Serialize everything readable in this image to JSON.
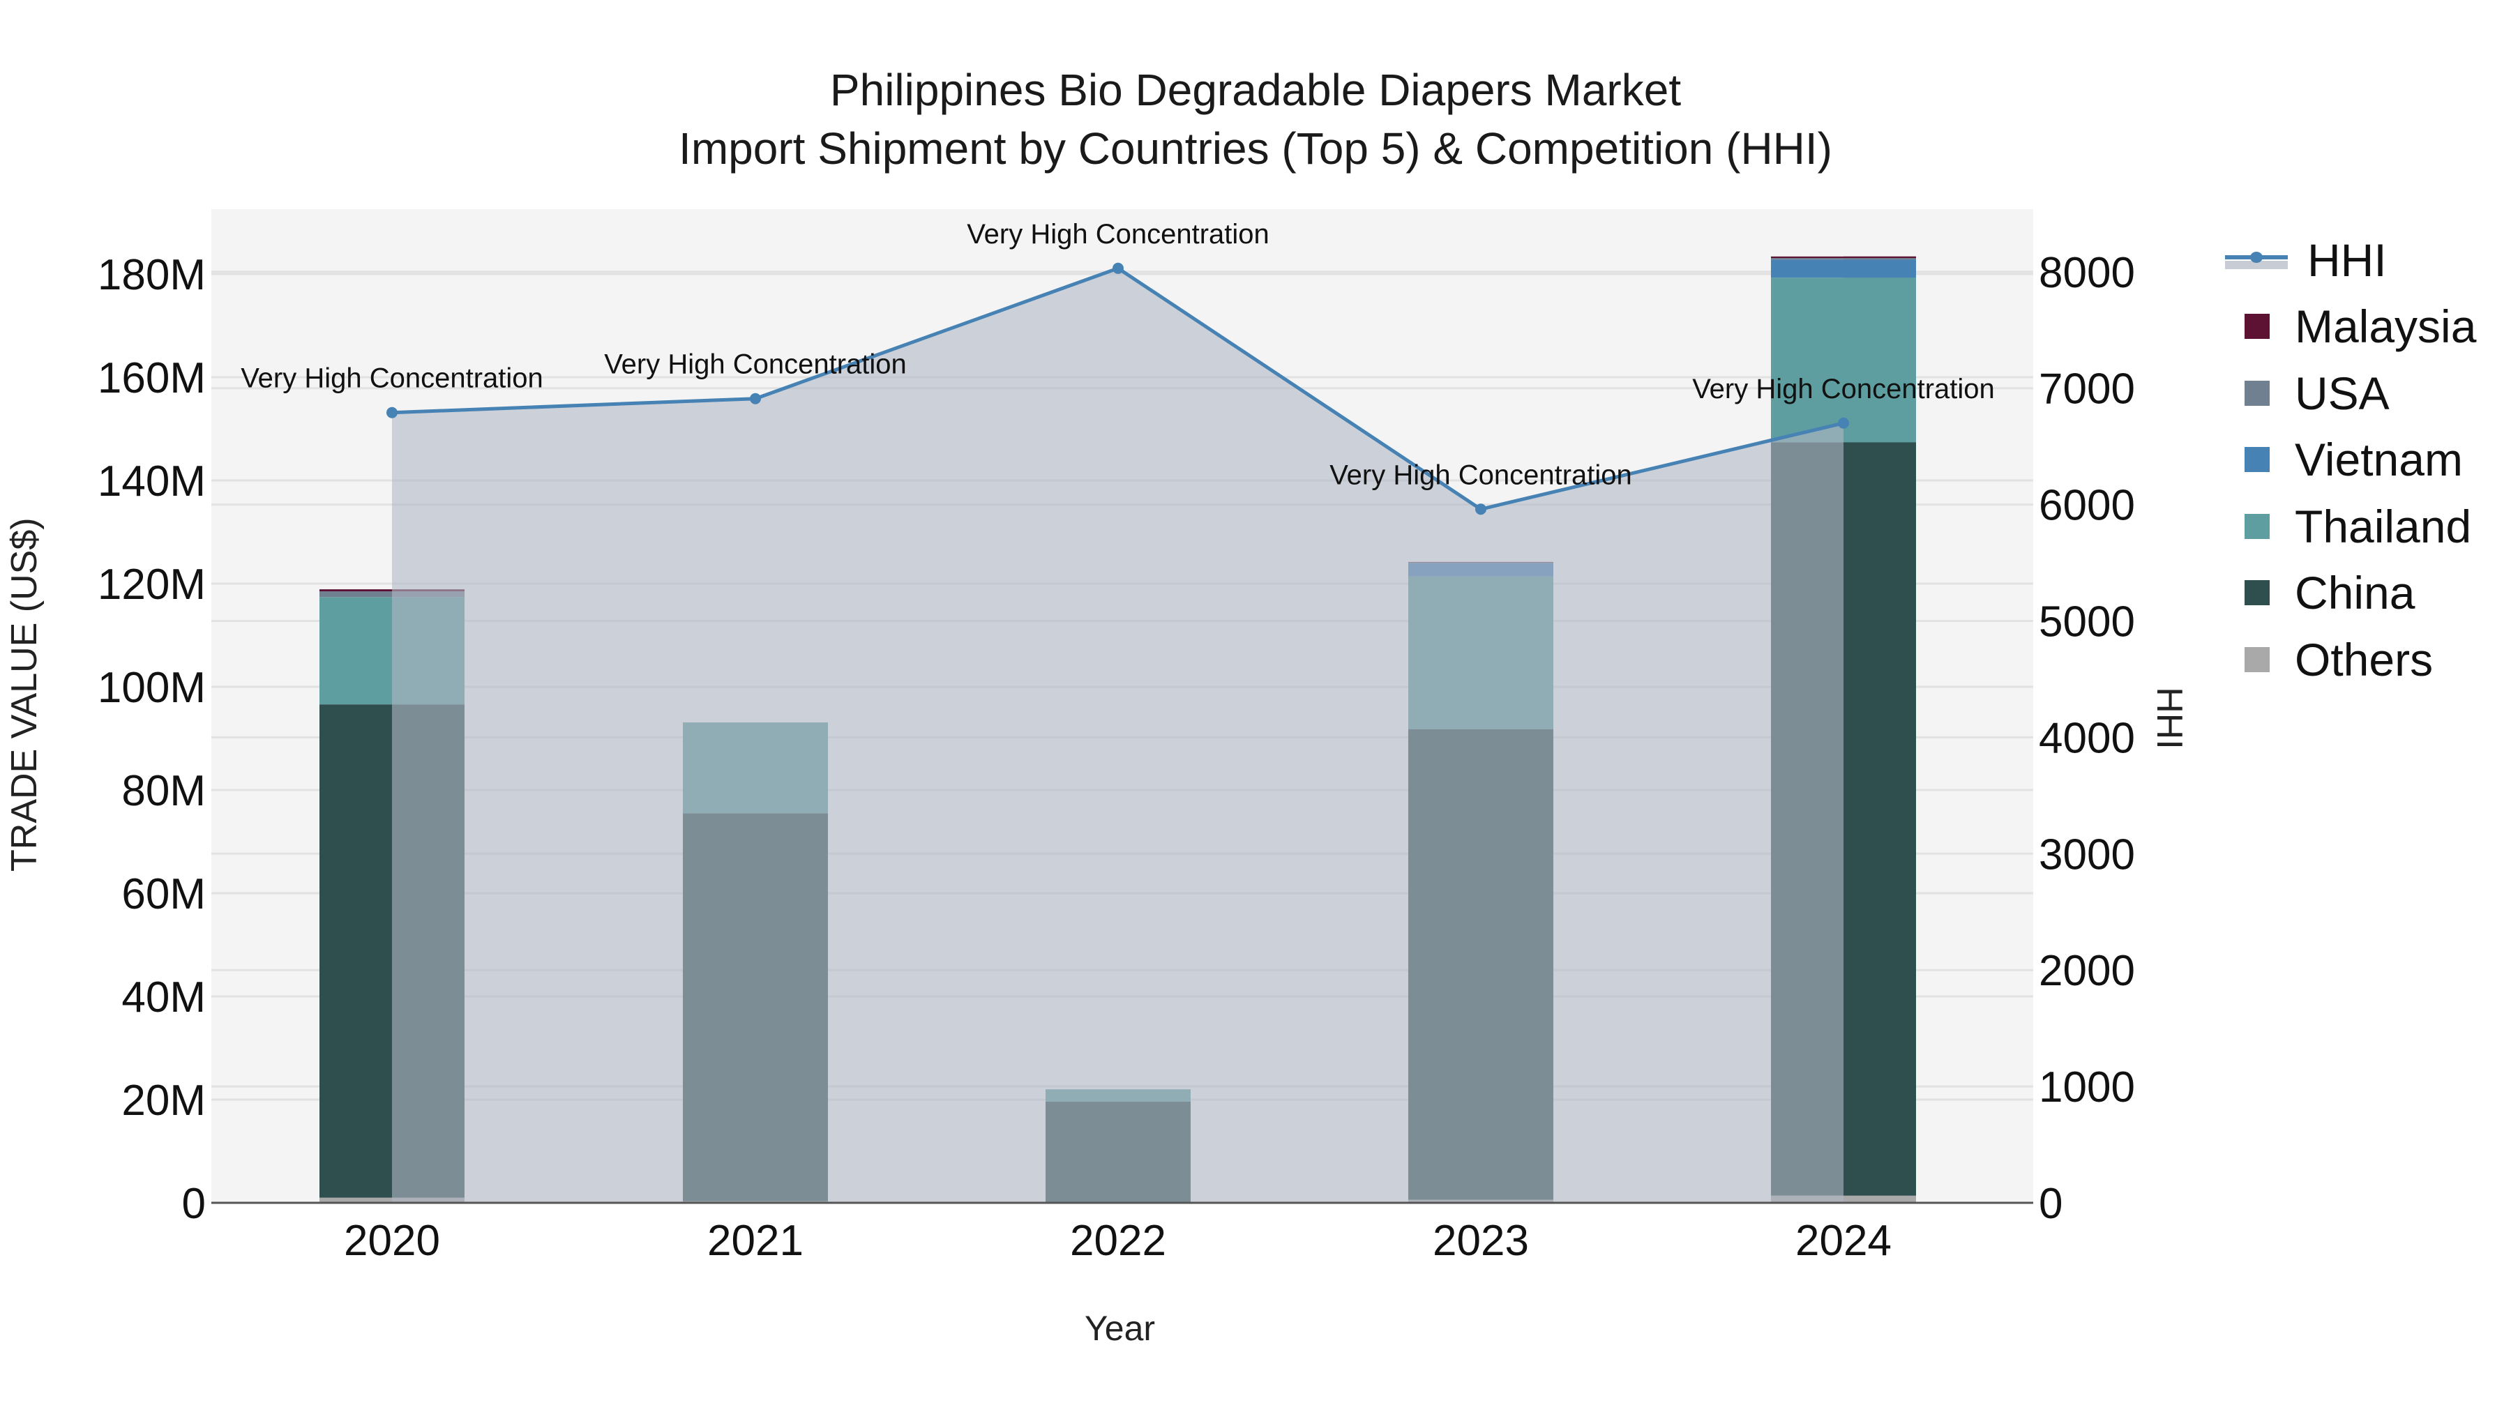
{
  "title": {
    "line1": "Philippines Bio Degradable Diapers Market",
    "line2": "Import Shipment by Countries (Top 5) & Competition (HHI)"
  },
  "axes": {
    "x_title": "Year",
    "y_left_title": "TRADE VALUE (US$)",
    "y_right_title": "HHI",
    "y_left_ticks": [
      "0",
      "20M",
      "40M",
      "60M",
      "80M",
      "100M",
      "120M",
      "140M",
      "160M",
      "180M"
    ],
    "y_right_ticks": [
      "0",
      "1000",
      "2000",
      "3000",
      "4000",
      "5000",
      "6000",
      "7000",
      "8000"
    ],
    "x_ticks": [
      "2020",
      "2021",
      "2022",
      "2023",
      "2024"
    ]
  },
  "legend": [
    {
      "name": "HHI",
      "type": "line",
      "color": "#4682b4"
    },
    {
      "name": "Malaysia",
      "type": "bar",
      "color": "#5e1233"
    },
    {
      "name": "USA",
      "type": "bar",
      "color": "#708090"
    },
    {
      "name": "Vietnam",
      "type": "bar",
      "color": "#4682b4"
    },
    {
      "name": "Thailand",
      "type": "bar",
      "color": "#5f9ea0"
    },
    {
      "name": "China",
      "type": "bar",
      "color": "#2f4f4f"
    },
    {
      "name": "Others",
      "type": "bar",
      "color": "#a9a9a9"
    }
  ],
  "colors": {
    "plot_bg": "#f4f4f4",
    "hhi_fill": "#c8cdd5",
    "hhi_line": "#4682b4",
    "grid": "#e2e2e2",
    "axis_line": "#555555"
  },
  "chart_data": {
    "type": "bar",
    "stacked": true,
    "title": "Philippines Bio Degradable Diapers Market — Import Shipment by Countries (Top 5) & Competition (HHI)",
    "xlabel": "Year",
    "ylabel": "TRADE VALUE (US$)",
    "y2label": "HHI",
    "categories": [
      "2020",
      "2021",
      "2022",
      "2023",
      "2024"
    ],
    "ylim": [
      0,
      192
    ],
    "y_units": "M US$",
    "y2lim": [
      0,
      8500
    ],
    "grid": true,
    "legend_position": "right",
    "series": [
      {
        "name": "Others",
        "color": "#a9a9a9",
        "values": [
          1.0,
          0.3,
          0.2,
          0.6,
          1.4
        ]
      },
      {
        "name": "China",
        "color": "#2f4f4f",
        "values": [
          95.6,
          75.2,
          19.4,
          91.2,
          146.0
        ]
      },
      {
        "name": "Thailand",
        "color": "#5f9ea0",
        "values": [
          20.8,
          17.6,
          2.4,
          29.6,
          31.9
        ]
      },
      {
        "name": "Vietnam",
        "color": "#4682b4",
        "values": [
          0.0,
          0.0,
          0.0,
          2.6,
          3.5
        ]
      },
      {
        "name": "USA",
        "color": "#708090",
        "values": [
          1.1,
          0.0,
          0.0,
          0.1,
          0.3
        ]
      },
      {
        "name": "Malaysia",
        "color": "#5e1233",
        "values": [
          0.4,
          0.0,
          0.0,
          0.1,
          0.3
        ]
      }
    ],
    "line_series": {
      "name": "HHI",
      "axis": "right",
      "color": "#4682b4",
      "fill": "tozeroy",
      "values": [
        6790,
        6910,
        8030,
        5960,
        6700
      ],
      "annotations": [
        "Very High Concentration",
        "Very High Concentration",
        "Very High Concentration",
        "Very High Concentration",
        "Very High Concentration"
      ]
    }
  }
}
